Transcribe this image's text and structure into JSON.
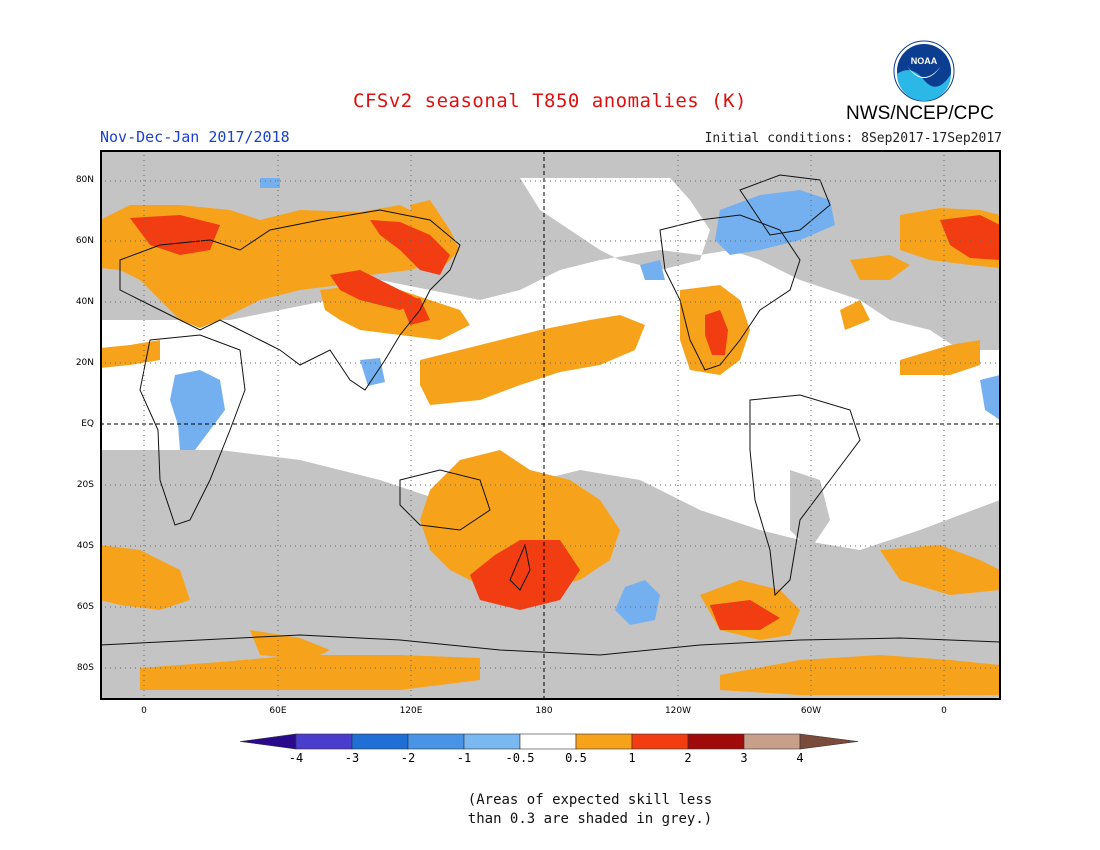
{
  "title": "CFSv2 seasonal T850 anomalies (K)",
  "agency": "NWS/NCEP/CPC",
  "logo_text": "NOAA",
  "season": "Nov-Dec-Jan 2017/2018",
  "initial_conditions": "Initial conditions: 8Sep2017-17Sep2017",
  "lat_labels": [
    "80N",
    "60N",
    "40N",
    "20N",
    "EQ",
    "20S",
    "40S",
    "60S",
    "80S"
  ],
  "lon_labels": [
    "0",
    "60E",
    "120E",
    "180",
    "120W",
    "60W",
    "0"
  ],
  "colorbar": {
    "labels": [
      "-4",
      "-3",
      "-2",
      "-1",
      "-0.5",
      "0.5",
      "1",
      "2",
      "3",
      "4"
    ],
    "colors": [
      "#2a0a8c",
      "#4a3ccc",
      "#1f6fd6",
      "#4a94e8",
      "#7ab8f2",
      "#ffffff",
      "#f7a21b",
      "#f23c12",
      "#a00a0a",
      "#c8a08a",
      "#7a4a3a"
    ]
  },
  "footnote_line1": "(Areas of expected skill less",
  "footnote_line2": "than 0.3 are shaded in grey.)",
  "map_colors": {
    "grey": "#c4c4c4",
    "orange": "#f7a21b",
    "red": "#f23c12",
    "lightblue": "#74b0ef",
    "blue": "#4a94e8"
  }
}
